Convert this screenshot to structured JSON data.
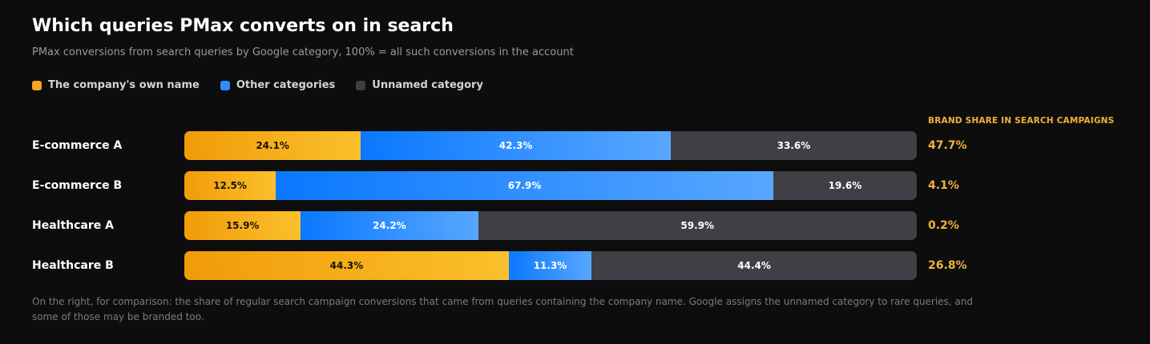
{
  "title": "Which queries PMax converts on in search",
  "subtitle": "PMax conversions from search queries by Google category, 100% = all such conversions in the account",
  "legend": [
    {
      "label": "The company's own name",
      "color": "#f5a623"
    },
    {
      "label": "Other categories",
      "color": "#2f8cff"
    },
    {
      "label": "Unnamed category",
      "color": "#3f3e44"
    }
  ],
  "side_heading": "BRAND SHARE IN SEARCH CAMPAIGNS",
  "footnote": "On the right, for comparison: the share of regular search campaign conversions that came from queries containing the company name. Google assigns the unnamed category to rare queries, and some of those may be branded too.",
  "chart_data": {
    "type": "bar",
    "stacked": true,
    "orientation": "horizontal",
    "categories": [
      "E-commerce A",
      "E-commerce B",
      "Healthcare A",
      "Healthcare B"
    ],
    "series": [
      {
        "name": "The company's own name",
        "values": [
          24.1,
          12.5,
          15.9,
          44.3
        ],
        "labels": [
          "24.1%",
          "12.5%",
          "15.9%",
          "44.3%"
        ]
      },
      {
        "name": "Other categories",
        "values": [
          42.3,
          67.9,
          24.2,
          11.3
        ],
        "labels": [
          "42.3%",
          "67.9%",
          "24.2%",
          "11.3%"
        ]
      },
      {
        "name": "Unnamed category",
        "values": [
          33.6,
          19.6,
          59.9,
          44.4
        ],
        "labels": [
          "33.6%",
          "19.6%",
          "59.9%",
          "44.4%"
        ]
      }
    ],
    "xlim": [
      0,
      100
    ],
    "side_values": [
      47.7,
      4.1,
      0.2,
      26.8
    ],
    "side_labels": [
      "47.7%",
      "4.1%",
      "0.2%",
      "26.8%"
    ]
  }
}
